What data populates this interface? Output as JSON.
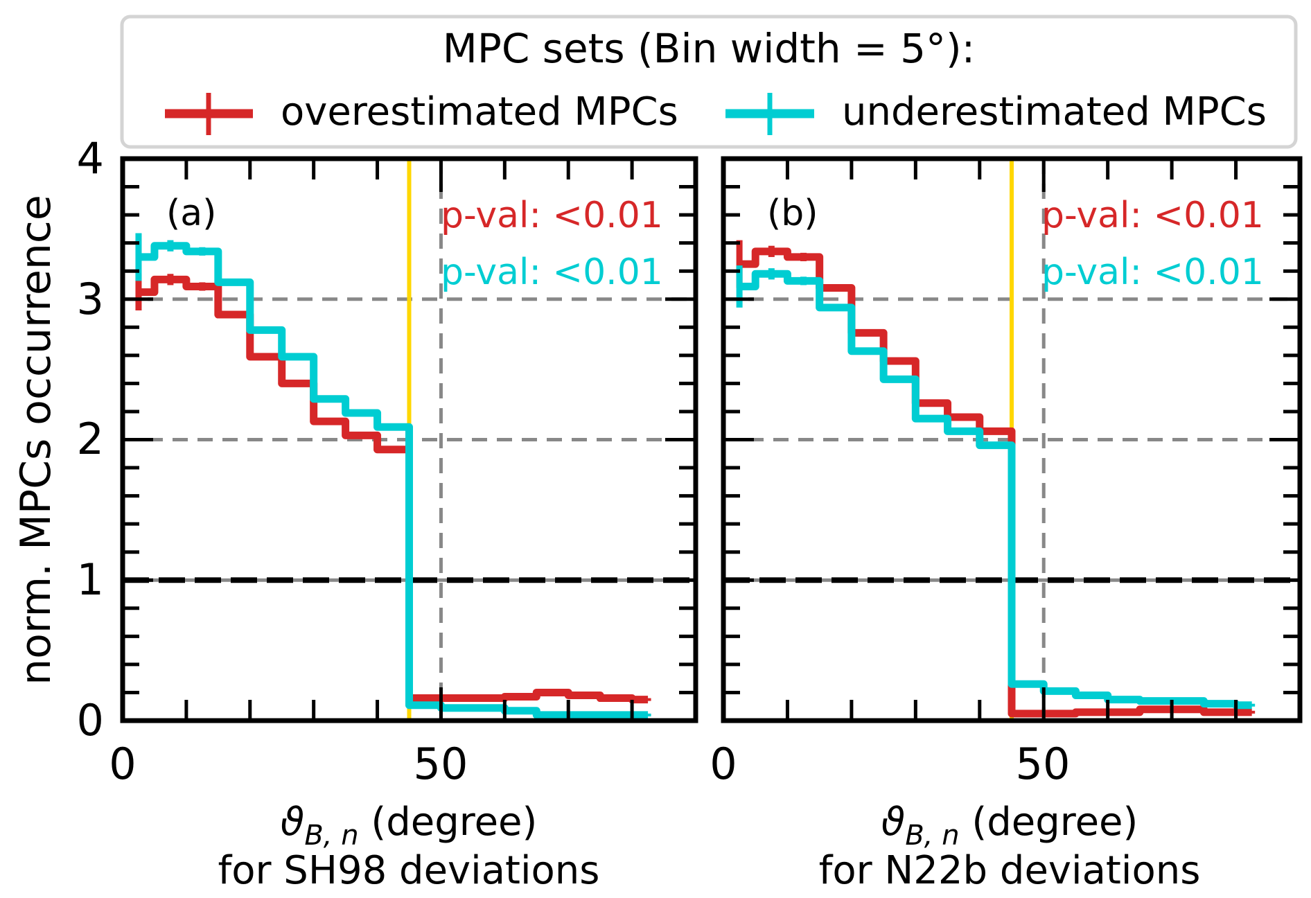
{
  "chart_data": {
    "type": "line",
    "step_style": "mid",
    "legend": {
      "title": "MPC sets (Bin width = 5°):",
      "placement": "top-center, above panels",
      "entries": [
        {
          "label": "overestimated MPCs",
          "color": "#d62728"
        },
        {
          "label": "underestimated MPCs",
          "color": "#00cdd2"
        }
      ]
    },
    "ylabel": "norm. MPCs occurrence",
    "shared_y": true,
    "ylim": [
      0,
      4
    ],
    "yticks": [
      0,
      1,
      2,
      3,
      4
    ],
    "yticks_minor_step": 0.2,
    "xticks_minor_step": 10,
    "colors": {
      "over": "#d62728",
      "under": "#00cdd2",
      "threshold_line": "#ffd700",
      "grid_dash": "#888888",
      "unity_line": "#000000",
      "legend_border": "#d4d4d4"
    },
    "panels": [
      {
        "id": "a",
        "panel_label": "(a)",
        "xlabel_line1": "ϑ",
        "xlabel_sub": "B, n",
        "xlabel_rest": " (degree)",
        "xlabel_line2": "for SH98 deviations",
        "xlim": [
          0,
          90
        ],
        "xticks": [
          0,
          50
        ],
        "xtick_labels": [
          "0",
          "50"
        ],
        "ytick_labels": [
          "0",
          "1",
          "2",
          "3",
          "4"
        ],
        "show_ytick_labels": true,
        "vline_threshold": 45,
        "vline_dashed": 50,
        "hlines_dashed": [
          2,
          3
        ],
        "hline_unity": 1,
        "annotations": [
          {
            "text": "p-val: <0.01",
            "series": "over"
          },
          {
            "text": "p-val: <0.01",
            "series": "under"
          }
        ],
        "x": [
          2.5,
          7.5,
          12.5,
          17.5,
          22.5,
          27.5,
          32.5,
          37.5,
          42.5,
          47.5,
          52.5,
          57.5,
          62.5,
          67.5,
          72.5,
          77.5,
          82.5
        ],
        "series": [
          {
            "name": "overestimated MPCs",
            "key": "over",
            "values": [
              3.05,
              3.14,
              3.09,
              2.89,
              2.59,
              2.4,
              2.13,
              2.03,
              1.93,
              0.16,
              0.16,
              0.16,
              0.17,
              0.2,
              0.18,
              0.16,
              0.15
            ],
            "errors": [
              0.13,
              0.04,
              0.03,
              0.02,
              0.02,
              0.02,
              0.02,
              0.02,
              0.02,
              0.01,
              0.01,
              0.01,
              0.01,
              0.01,
              0.01,
              0.01,
              0.01
            ]
          },
          {
            "name": "underestimated MPCs",
            "key": "under",
            "values": [
              3.3,
              3.38,
              3.34,
              3.12,
              2.78,
              2.59,
              2.29,
              2.19,
              2.09,
              0.11,
              0.09,
              0.09,
              0.07,
              0.04,
              0.04,
              0.04,
              0.04
            ],
            "errors": [
              0.17,
              0.04,
              0.03,
              0.02,
              0.02,
              0.02,
              0.02,
              0.02,
              0.02,
              0.01,
              0.01,
              0.01,
              0.01,
              0.01,
              0.01,
              0.01,
              0.01
            ]
          }
        ]
      },
      {
        "id": "b",
        "panel_label": "(b)",
        "xlabel_line1": "ϑ",
        "xlabel_sub": "B, n",
        "xlabel_rest": " (degree)",
        "xlabel_line2": "for N22b deviations",
        "xlim": [
          0,
          90
        ],
        "xticks": [
          0,
          50
        ],
        "xtick_labels": [
          "0",
          "50"
        ],
        "show_ytick_labels": false,
        "vline_threshold": 45,
        "vline_dashed": 50,
        "hlines_dashed": [
          2,
          3
        ],
        "hline_unity": 1,
        "annotations": [
          {
            "text": "p-val: <0.01",
            "series": "over"
          },
          {
            "text": "p-val: <0.01",
            "series": "under"
          }
        ],
        "x": [
          2.5,
          7.5,
          12.5,
          17.5,
          22.5,
          27.5,
          32.5,
          37.5,
          42.5,
          47.5,
          52.5,
          57.5,
          62.5,
          67.5,
          72.5,
          77.5,
          82.5
        ],
        "series": [
          {
            "name": "overestimated MPCs",
            "key": "over",
            "values": [
              3.25,
              3.34,
              3.3,
              3.08,
              2.76,
              2.56,
              2.26,
              2.16,
              2.06,
              0.05,
              0.05,
              0.06,
              0.06,
              0.08,
              0.08,
              0.06,
              0.06
            ],
            "errors": [
              0.17,
              0.04,
              0.03,
              0.02,
              0.02,
              0.02,
              0.02,
              0.02,
              0.02,
              0.01,
              0.01,
              0.01,
              0.01,
              0.01,
              0.01,
              0.01,
              0.01
            ]
          },
          {
            "name": "underestimated MPCs",
            "key": "under",
            "values": [
              3.09,
              3.18,
              3.13,
              2.94,
              2.63,
              2.43,
              2.15,
              2.06,
              1.96,
              0.26,
              0.21,
              0.18,
              0.15,
              0.14,
              0.14,
              0.12,
              0.11
            ],
            "errors": [
              0.15,
              0.04,
              0.03,
              0.02,
              0.02,
              0.02,
              0.02,
              0.02,
              0.02,
              0.01,
              0.01,
              0.01,
              0.01,
              0.01,
              0.01,
              0.01,
              0.01
            ]
          }
        ]
      }
    ]
  }
}
